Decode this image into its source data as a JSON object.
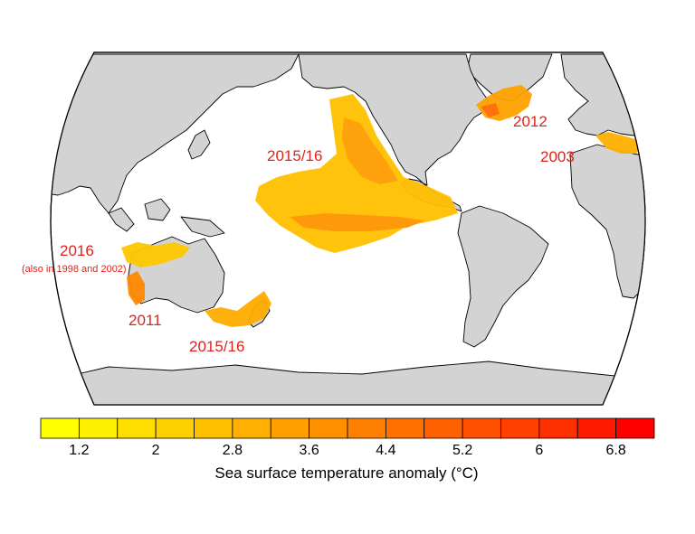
{
  "map": {
    "projection": "Robinson",
    "ocean_color": "#ffffff",
    "land_color": "#d3d3d3",
    "coast_color": "#000000"
  },
  "events": [
    {
      "id": "ne-pacific",
      "label": "2015/16"
    },
    {
      "id": "nw-atlantic",
      "label": "2012"
    },
    {
      "id": "mediterranean",
      "label": "2003"
    },
    {
      "id": "nw-australia",
      "label": "2016",
      "note": "(also in 1998 and 2002)"
    },
    {
      "id": "w-australia",
      "label": "2011"
    },
    {
      "id": "tasman",
      "label": "2015/16"
    }
  ],
  "colorbar": {
    "title": "Sea surface temperature anomaly (°C)",
    "ticks": [
      "1.2",
      "2",
      "2.8",
      "3.6",
      "4.4",
      "5.2",
      "6",
      "6.8"
    ],
    "colors": [
      "#ffff00",
      "#ffef00",
      "#ffdf00",
      "#ffd000",
      "#ffc000",
      "#ffb000",
      "#ffa000",
      "#ff9000",
      "#ff8000",
      "#ff7000",
      "#ff6000",
      "#ff5000",
      "#ff4000",
      "#ff3000",
      "#ff1a00",
      "#ff0000"
    ]
  }
}
